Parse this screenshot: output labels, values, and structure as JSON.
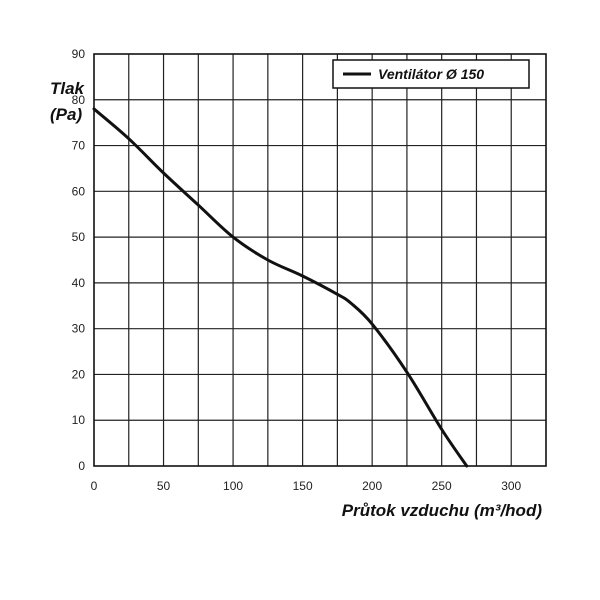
{
  "chart_data": {
    "type": "line",
    "ylabel_line1": "Tlak",
    "ylabel_line2": "(Pa)",
    "xlabel": "Průtok vzduchu (m³/hod)",
    "xlim": [
      0,
      325
    ],
    "ylim": [
      0,
      90
    ],
    "xticks": [
      0,
      50,
      100,
      150,
      200,
      250,
      300
    ],
    "yticks": [
      0,
      10,
      20,
      30,
      40,
      50,
      60,
      70,
      80,
      90
    ],
    "grid": true,
    "legend": "top-right",
    "series": [
      {
        "name": "Ventilátor Ø 150",
        "color": "#111111",
        "x": [
          0,
          25,
          50,
          75,
          100,
          125,
          150,
          175,
          185,
          200,
          225,
          250,
          268
        ],
        "y": [
          78,
          71.5,
          64,
          57,
          50,
          45,
          41.5,
          37.5,
          35.5,
          31,
          20.5,
          8,
          0
        ]
      }
    ]
  }
}
